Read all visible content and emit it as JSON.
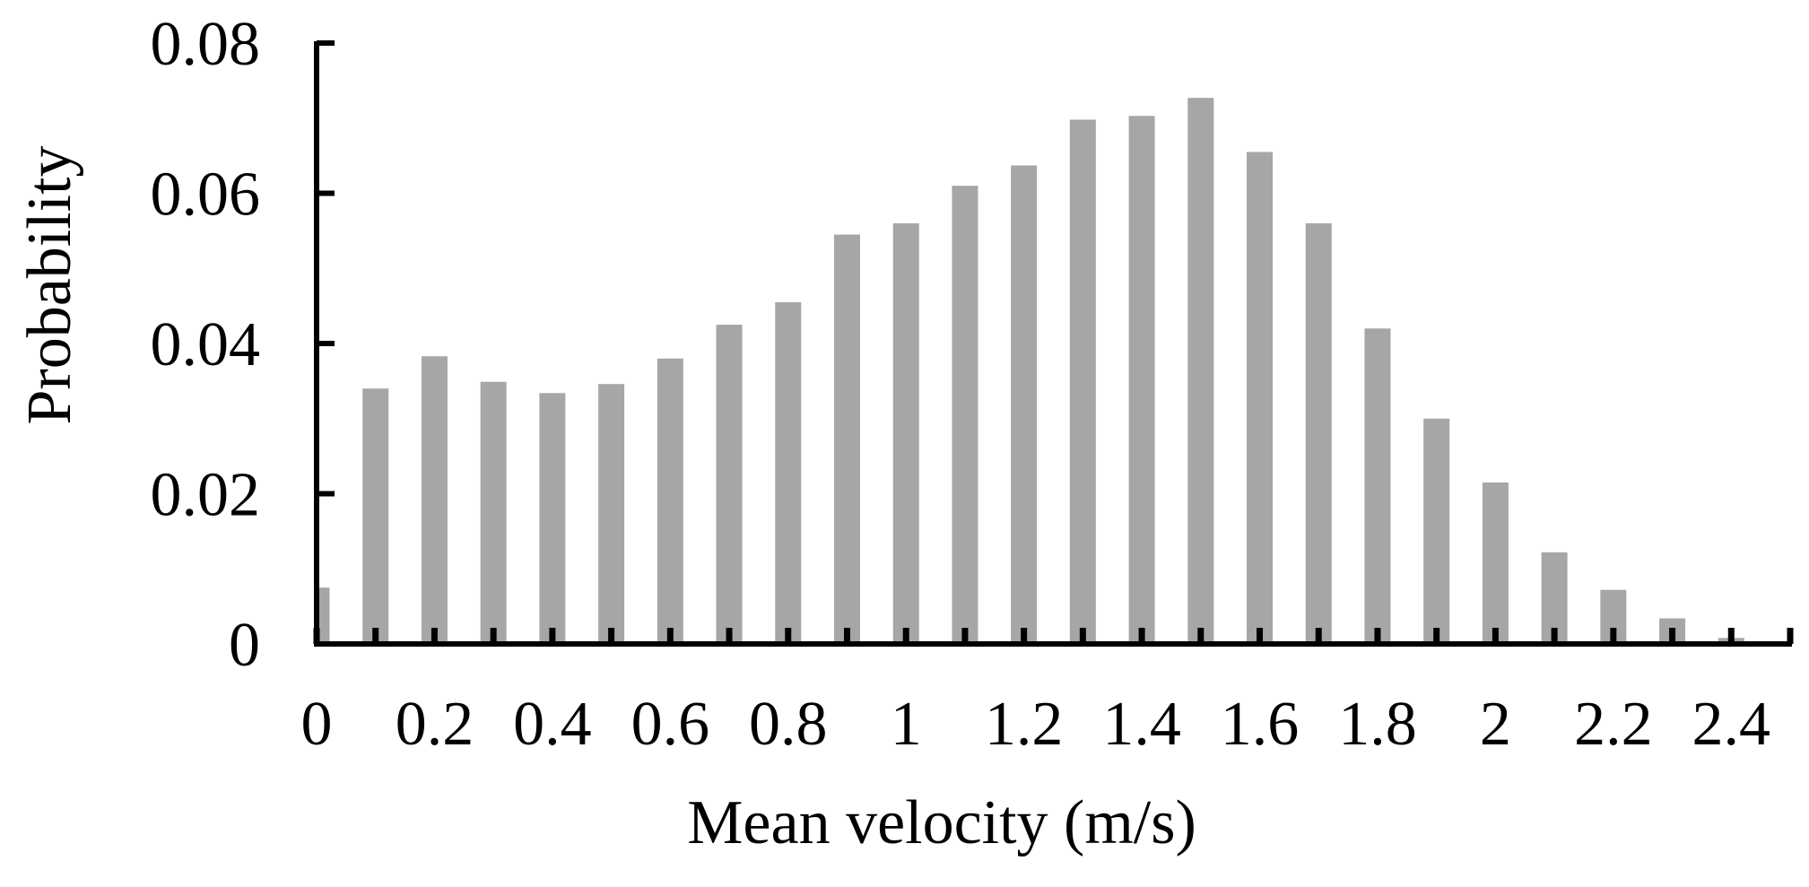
{
  "chart_data": {
    "type": "bar",
    "title": "",
    "xlabel": "Mean velocity (m/s)",
    "ylabel": "Probability",
    "x": [
      0,
      0.1,
      0.2,
      0.3,
      0.4,
      0.5,
      0.6,
      0.7,
      0.8,
      0.9,
      1.0,
      1.1,
      1.2,
      1.3,
      1.4,
      1.5,
      1.6,
      1.7,
      1.8,
      1.9,
      2.0,
      2.1,
      2.2,
      2.3,
      2.4
    ],
    "values": [
      0.0075,
      0.034,
      0.0383,
      0.0349,
      0.0334,
      0.0346,
      0.038,
      0.0425,
      0.0455,
      0.0545,
      0.056,
      0.061,
      0.0637,
      0.0698,
      0.0703,
      0.0727,
      0.0655,
      0.056,
      0.042,
      0.03,
      0.0215,
      0.0122,
      0.0072,
      0.0034,
      0.0008
    ],
    "xlim": [
      0,
      2.5
    ],
    "ylim": [
      0,
      0.08
    ],
    "x_ticks": [
      0,
      0.2,
      0.4,
      0.6,
      0.8,
      1,
      1.2,
      1.4,
      1.6,
      1.8,
      2,
      2.2,
      2.4
    ],
    "x_tick_labels": [
      "0",
      "0.2",
      "0.4",
      "0.6",
      "0.8",
      "1",
      "1.2",
      "1.4",
      "1.6",
      "1.8",
      "2",
      "2.2",
      "2.4"
    ],
    "x_minor_ticks": [
      0.1,
      0.3,
      0.5,
      0.7,
      0.9,
      1.1,
      1.3,
      1.5,
      1.7,
      1.9,
      2.1,
      2.3,
      2.5
    ],
    "y_ticks": [
      0,
      0.02,
      0.04,
      0.06,
      0.08
    ],
    "y_tick_labels": [
      "0",
      "0.02",
      "0.04",
      "0.06",
      "0.08"
    ],
    "grid": false,
    "legend": "none",
    "bar_color": "#a6a6a6",
    "axis_color": "#000000"
  }
}
